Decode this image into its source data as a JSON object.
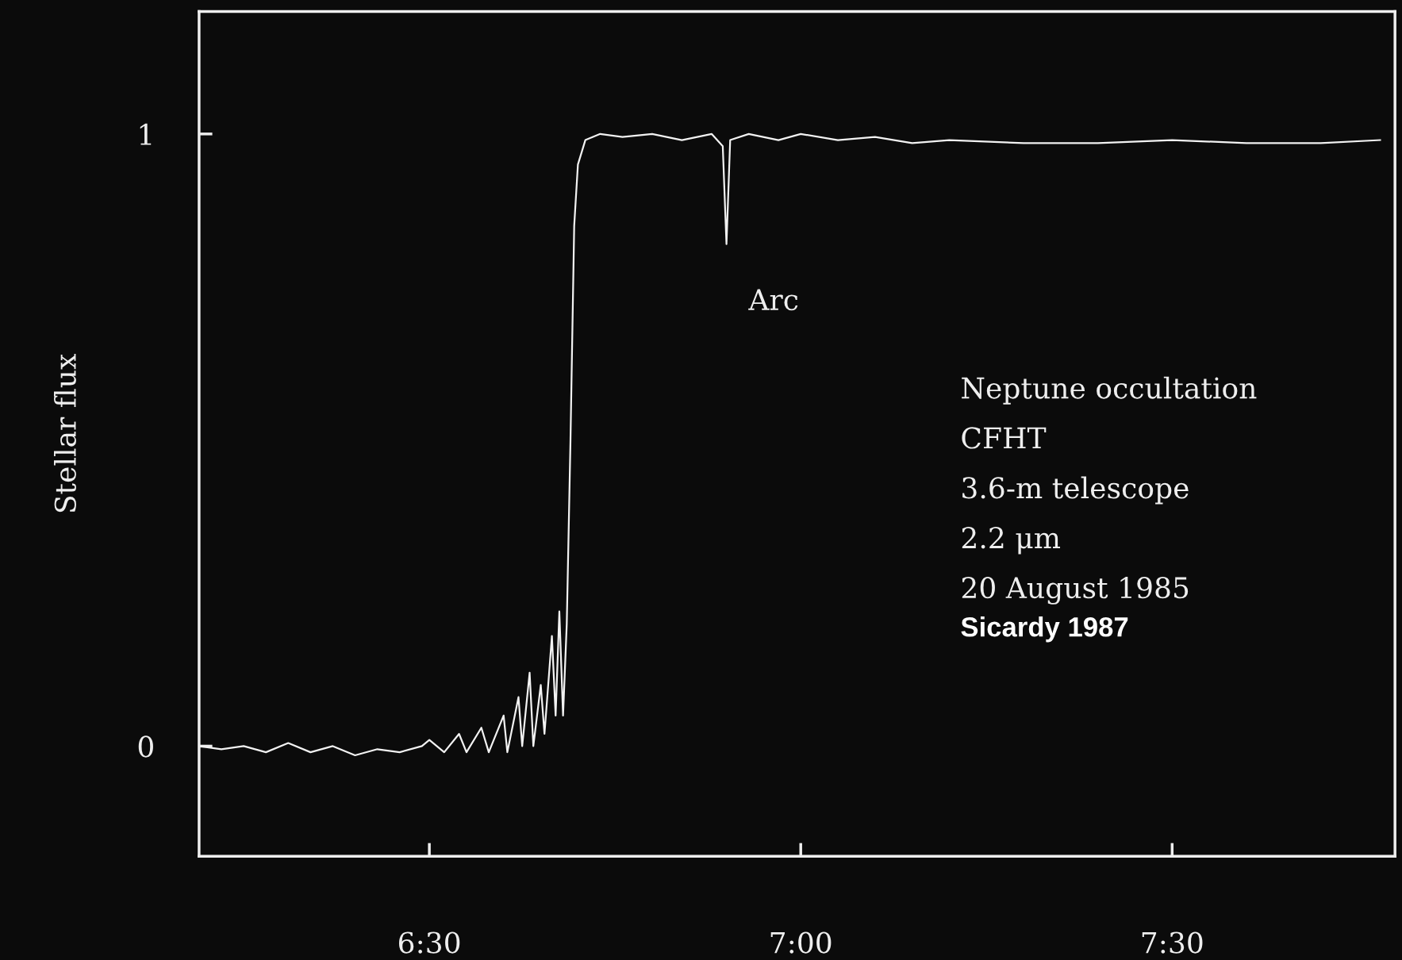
{
  "chart_data": {
    "type": "line",
    "ylabel": "Stellar flux",
    "x": [
      6.19,
      6.22,
      6.25,
      6.28,
      6.31,
      6.34,
      6.37,
      6.4,
      6.43,
      6.46,
      6.49,
      6.5,
      6.52,
      6.54,
      6.55,
      6.57,
      6.58,
      6.6,
      6.605,
      6.62,
      6.625,
      6.635,
      6.64,
      6.65,
      6.655,
      6.665,
      6.67,
      6.675,
      6.68,
      6.685,
      6.69,
      6.695,
      6.7,
      6.71,
      6.73,
      6.76,
      6.8,
      6.84,
      6.88,
      6.895,
      6.9,
      6.905,
      6.93,
      6.97,
      7.0,
      7.05,
      7.1,
      7.15,
      7.2,
      7.3,
      7.4,
      7.5,
      7.6,
      7.7,
      7.78
    ],
    "values": [
      0.0,
      -0.005,
      0.0,
      -0.01,
      0.005,
      -0.01,
      0.0,
      -0.015,
      -0.005,
      -0.01,
      0.0,
      0.01,
      -0.01,
      0.02,
      -0.01,
      0.03,
      -0.01,
      0.05,
      -0.01,
      0.08,
      0.0,
      0.12,
      0.0,
      0.1,
      0.02,
      0.18,
      0.05,
      0.22,
      0.05,
      0.2,
      0.5,
      0.85,
      0.95,
      0.99,
      1.0,
      0.995,
      1.0,
      0.99,
      1.0,
      0.98,
      0.82,
      0.99,
      1.0,
      0.99,
      1.0,
      0.99,
      0.995,
      0.985,
      0.99,
      0.985,
      0.985,
      0.99,
      0.985,
      0.985,
      0.99
    ],
    "color": "#f2f2f2",
    "xlim": [
      6.19,
      7.8
    ],
    "ylim": [
      -0.18,
      1.2
    ],
    "xticks": [
      {
        "value": 6.5,
        "label": "6:30"
      },
      {
        "value": 7.0,
        "label": "7:00"
      },
      {
        "value": 7.5,
        "label": "7:30"
      }
    ],
    "yticks": [
      0,
      1
    ],
    "grid": false,
    "legend": false,
    "marker": "none",
    "line_style": "solid",
    "annotations": [
      {
        "text": "Arc",
        "x": 6.9,
        "y": 0.82
      },
      "Neptune occultation",
      "CFHT",
      "3.6-m telescope",
      "2.2 μm",
      "20 August 1985",
      "Sicardy 1987"
    ]
  }
}
